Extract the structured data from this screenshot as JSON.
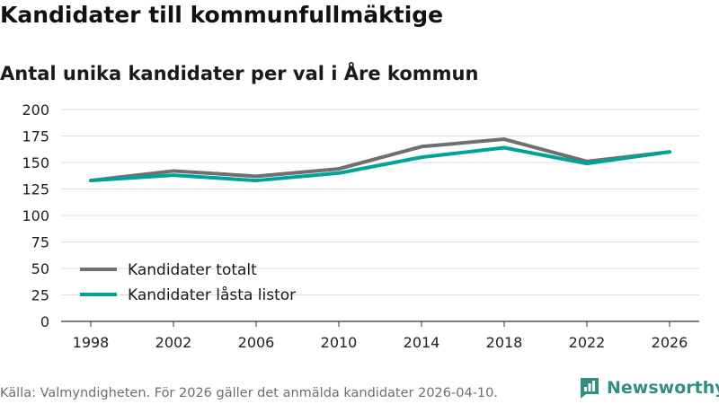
{
  "title": "Kandidater till kommunfullmäktige",
  "subtitle": "Antal unika kandidater per val i Åre kommun",
  "footer": {
    "source": "Källa: Valmyndigheten. För 2026 gäller det anmälda kandidater 2026-04-10.",
    "brand": "Newsworthy"
  },
  "colors": {
    "series_total": "#6f6f72",
    "series_locked": "#00a39a",
    "grid": "#dcdcdc",
    "axis": "#333333",
    "brand": "#2f8f82"
  },
  "chart_data": {
    "type": "line",
    "categories": [
      "1998",
      "2002",
      "2006",
      "2010",
      "2014",
      "2018",
      "2022",
      "2026"
    ],
    "series": [
      {
        "name": "Kandidater totalt",
        "values": [
          133,
          142,
          137,
          144,
          165,
          172,
          151,
          160
        ]
      },
      {
        "name": "Kandidater låsta listor",
        "values": [
          133,
          138,
          133,
          140,
          155,
          164,
          149,
          160
        ]
      }
    ],
    "ylim": [
      0,
      200
    ],
    "yticks": [
      0,
      25,
      50,
      75,
      100,
      125,
      150,
      175,
      200
    ],
    "xlabel": "",
    "ylabel": "",
    "grid": true,
    "legend_position": "bottom-left"
  }
}
